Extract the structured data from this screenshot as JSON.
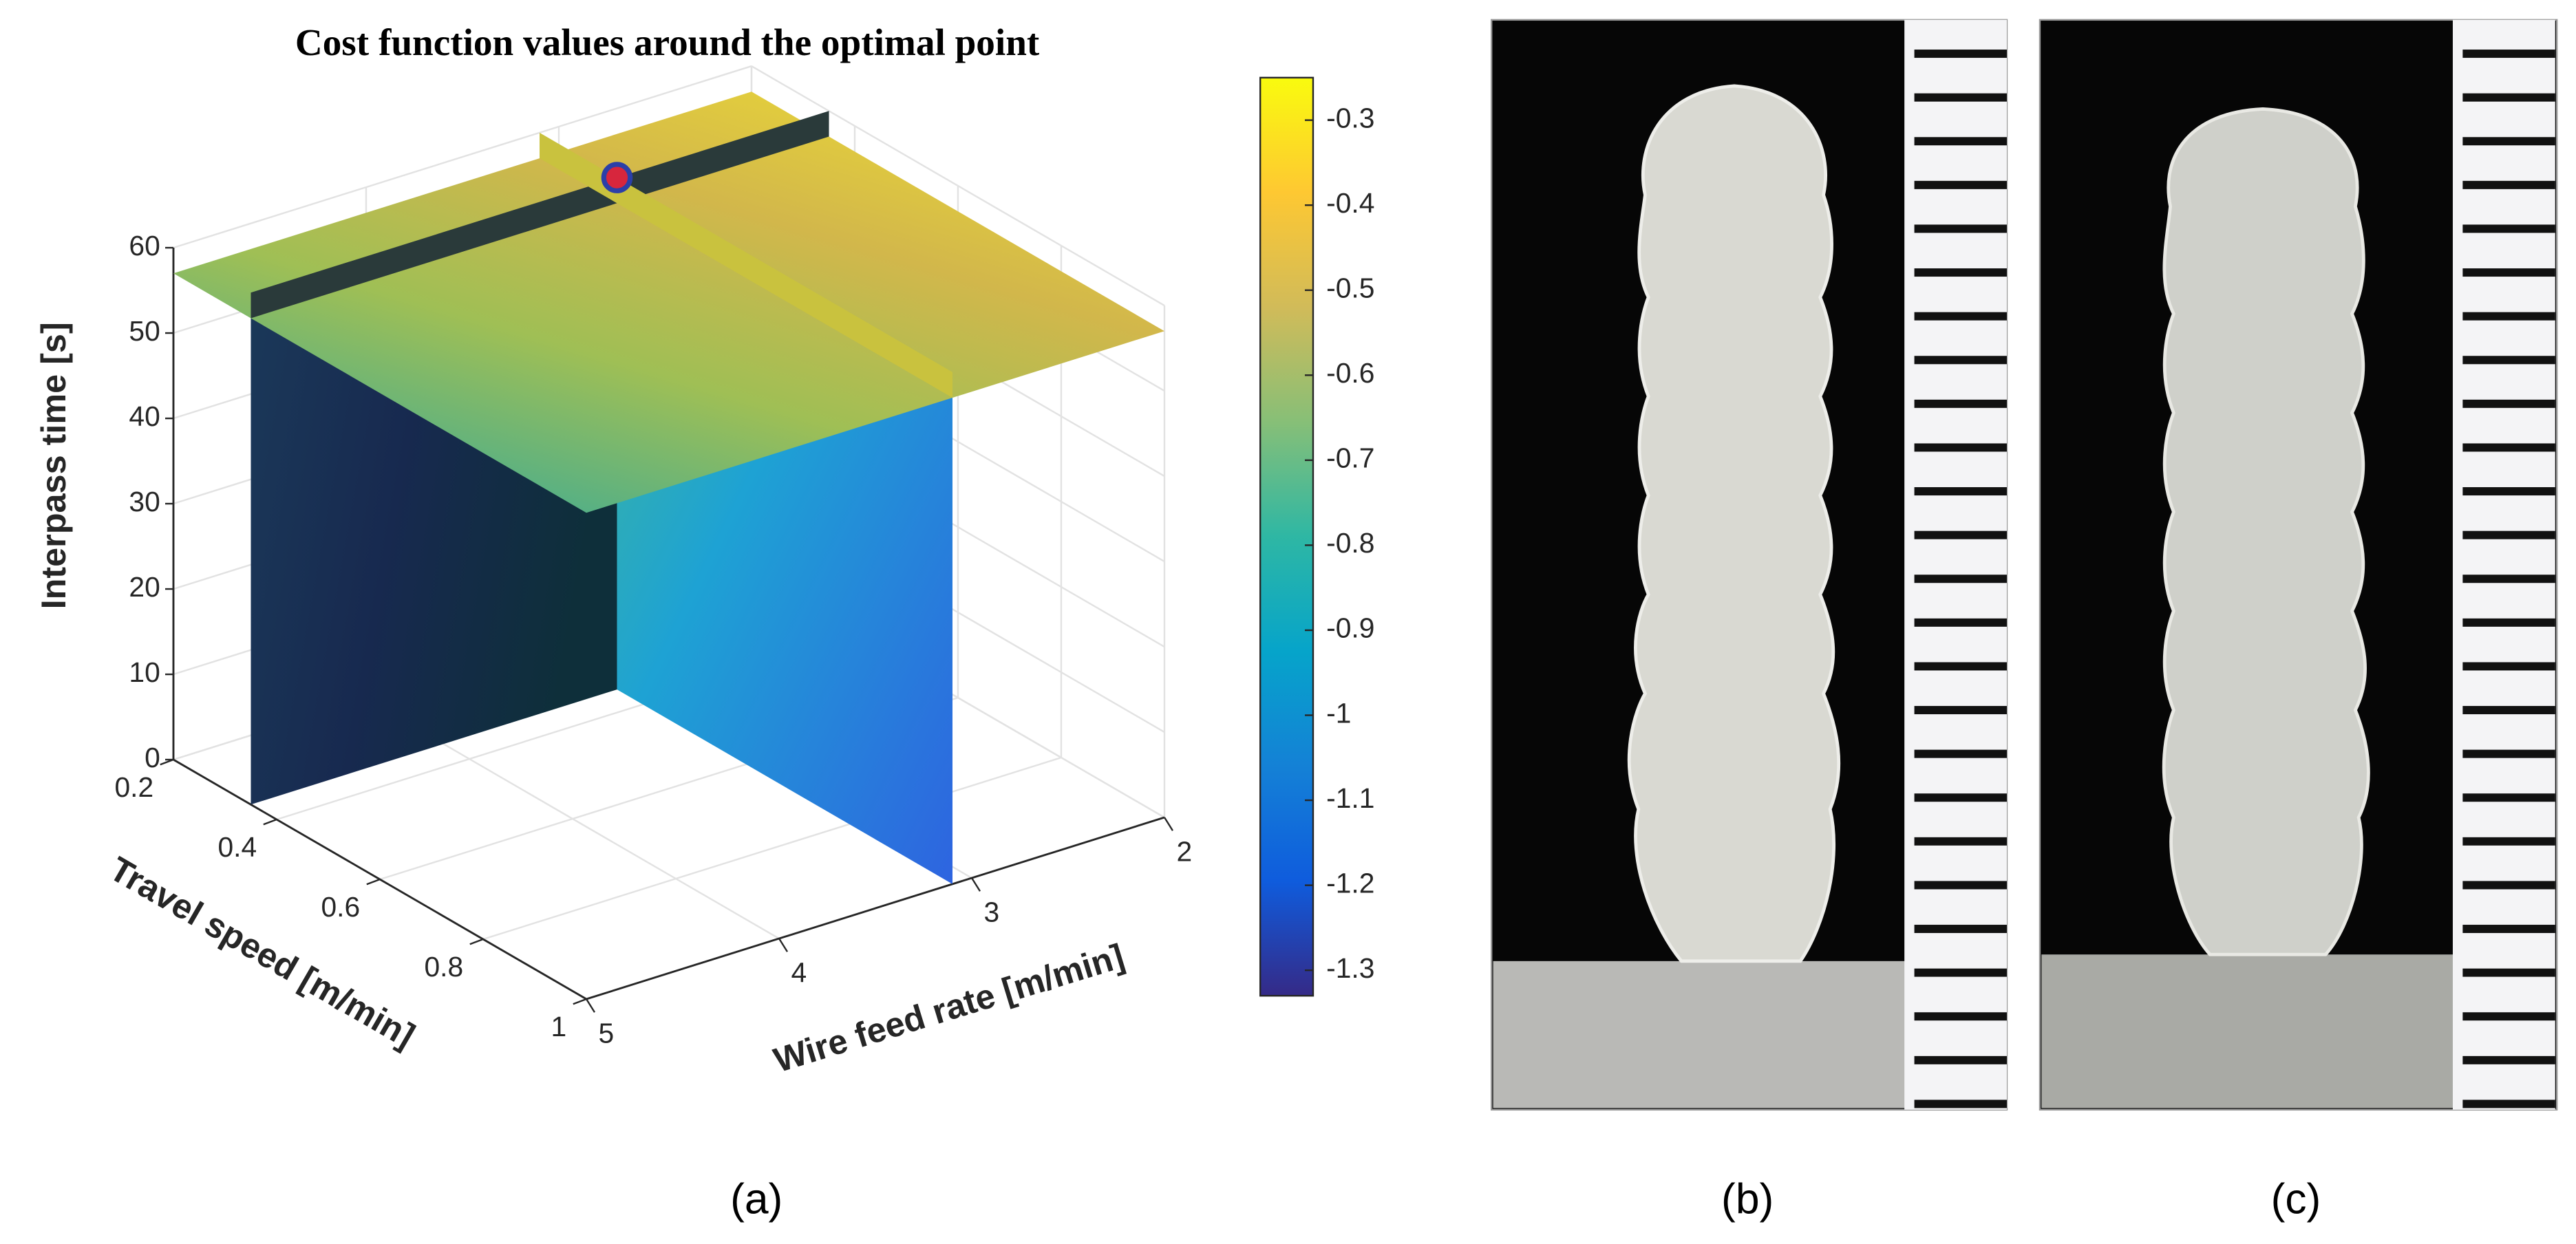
{
  "chart_data": {
    "type": "slice3d",
    "title": "Cost function values around the optimal point",
    "xlabel": "Wire feed rate [m/min]",
    "ylabel": "Travel speed [m/min]",
    "zlabel": "Interpass time [s]",
    "xlim": [
      2,
      5
    ],
    "xticks": [
      2,
      3,
      4,
      5
    ],
    "ylim": [
      0.2,
      1
    ],
    "yticks": [
      0.2,
      0.4,
      0.6,
      0.8,
      1
    ],
    "zlim": [
      0,
      60
    ],
    "zticks": [
      0,
      10,
      20,
      30,
      40,
      50,
      60
    ],
    "slice_point": {
      "x": 3.1,
      "y": 0.35,
      "z": 57
    },
    "clim": [
      -1.33,
      -0.25
    ],
    "cticks": [
      -0.3,
      -0.4,
      -0.5,
      -0.6,
      -0.7,
      -0.8,
      -0.9,
      -1,
      -1.1,
      -1.2,
      -1.3
    ],
    "colormap": [
      "#352a87",
      "#0f5cdd",
      "#1481d6",
      "#06a4ca",
      "#2eb7a4",
      "#87bf77",
      "#d1bb59",
      "#fec832",
      "#f9fb0e"
    ],
    "grid": true
  },
  "panels": {
    "labels": [
      "(a)",
      "(b)",
      "(c)"
    ]
  }
}
